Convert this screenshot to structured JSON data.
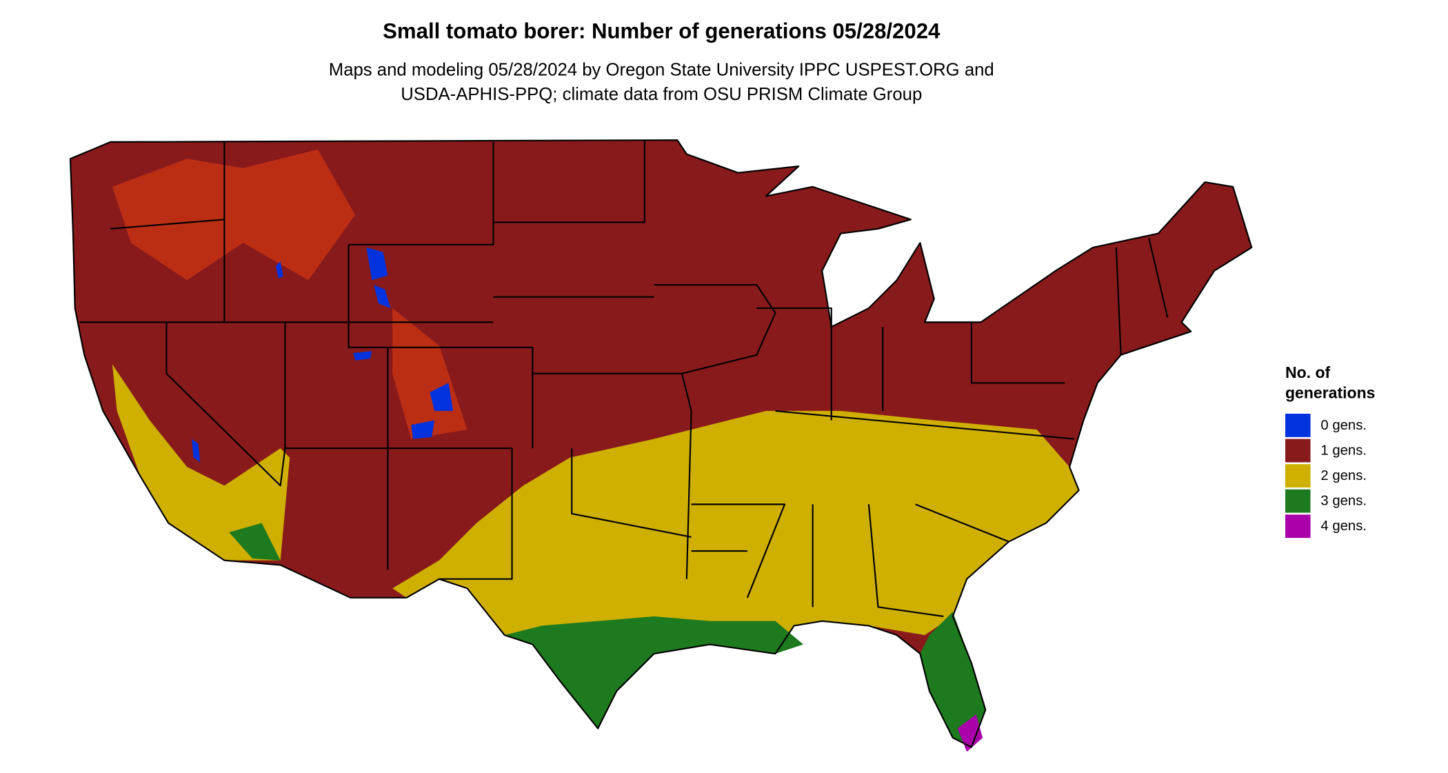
{
  "title": "Small tomato borer: Number of generations 05/28/2024",
  "subtitle_lines": [
    "Maps and modeling 05/28/2024 by Oregon State University IPPC USPEST.ORG and",
    "USDA-APHIS-PPQ; climate data from OSU PRISM Climate Group"
  ],
  "legend": {
    "title_lines": [
      "No. of",
      "generations"
    ],
    "items": [
      {
        "label": "0 gens.",
        "color": "#0033dd"
      },
      {
        "label": "1 gens.",
        "color": "#881a1c"
      },
      {
        "label": "2 gens.",
        "color": "#cfb000"
      },
      {
        "label": "3 gens.",
        "color": "#1e7a1e"
      },
      {
        "label": "4 gens.",
        "color": "#aa00aa"
      }
    ]
  }
}
